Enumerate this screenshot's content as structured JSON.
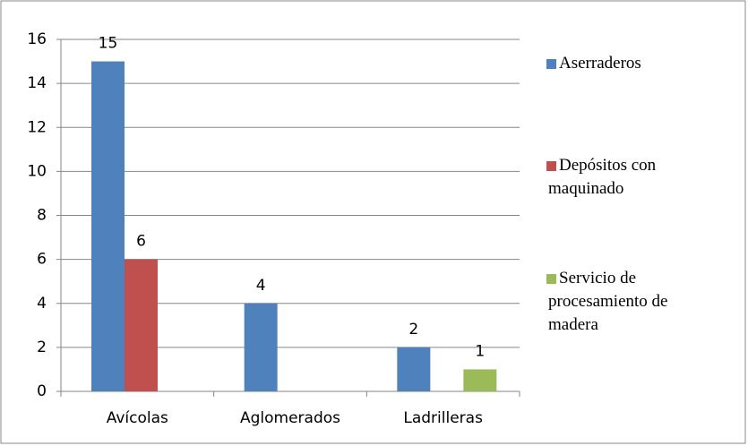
{
  "chart_data": {
    "type": "bar",
    "categories": [
      "Avícolas",
      "Aglomerados",
      "Ladrilleras"
    ],
    "series": [
      {
        "name": "Aserraderos",
        "color": "#4f81bd",
        "values": [
          15,
          4,
          2
        ]
      },
      {
        "name": "Depósitos con maquinado",
        "color": "#c0504d",
        "values": [
          6,
          null,
          null
        ]
      },
      {
        "name": "Servicio de procesamiento de madera",
        "color": "#9bbb59",
        "values": [
          null,
          null,
          1
        ]
      }
    ],
    "ylim": [
      0,
      16
    ],
    "yticks": [
      0,
      2,
      4,
      6,
      8,
      10,
      12,
      14,
      16
    ],
    "grid": true,
    "legend": "right",
    "data_labels": true
  }
}
